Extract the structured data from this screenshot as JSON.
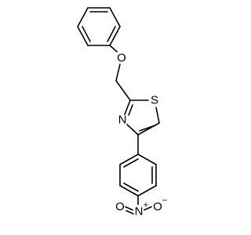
{
  "atoms": {
    "ether_o": "O",
    "thiazole_s": "S",
    "thiazole_n": "N",
    "nitro_n": "N",
    "nitro_n_charge": "+",
    "nitro_o_left": "O",
    "nitro_o_right": "O",
    "nitro_o_charge": "−"
  }
}
